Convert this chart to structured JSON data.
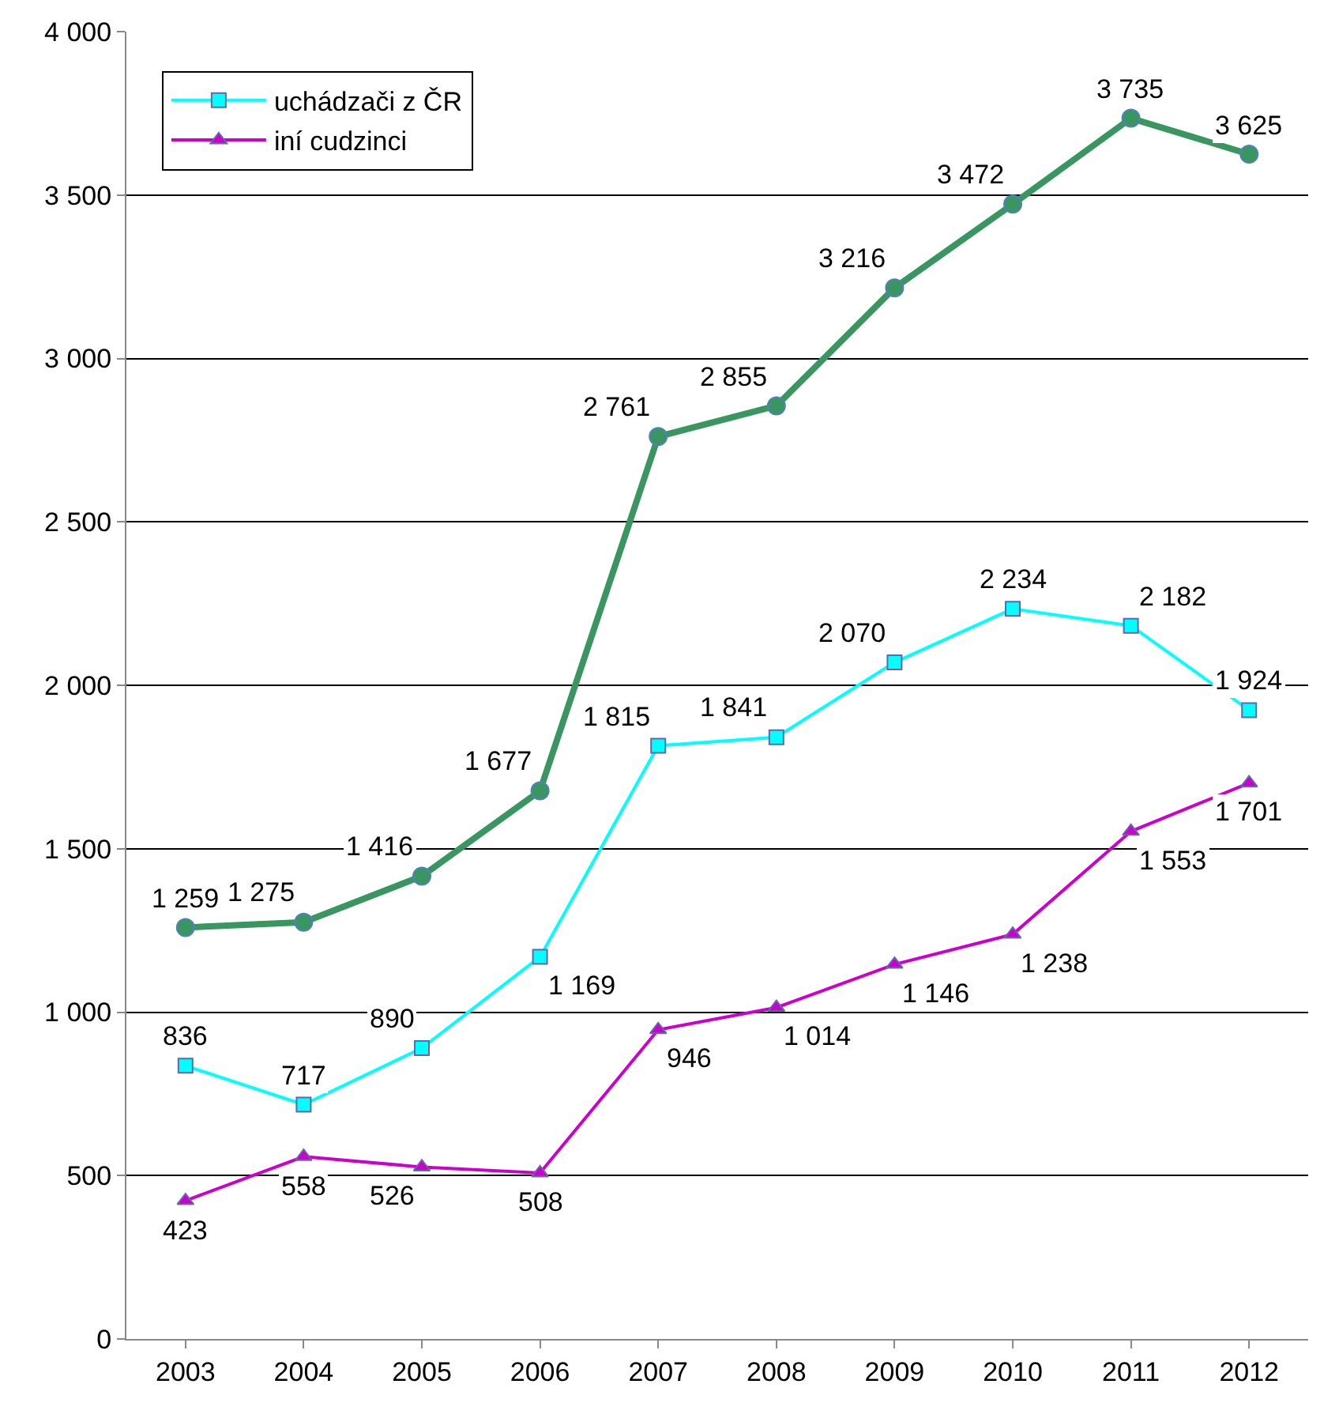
{
  "chart_data": {
    "type": "line",
    "categories": [
      "2003",
      "2004",
      "2005",
      "2006",
      "2007",
      "2008",
      "2009",
      "2010",
      "2011",
      "2012"
    ],
    "series": [
      {
        "color": "#3a9660",
        "marker": "circle",
        "values": [
          1259,
          1275,
          1416,
          1677,
          2761,
          2855,
          3216,
          3472,
          3735,
          3625
        ]
      },
      {
        "name": "uchádzači z ČR",
        "color": "#00ffff",
        "marker": "square",
        "values": [
          836,
          717,
          890,
          1169,
          1815,
          1841,
          2070,
          2234,
          2182,
          1924
        ]
      },
      {
        "name": "iní cudzinci",
        "color": "#cc00cc",
        "marker": "triangle",
        "values": [
          423,
          558,
          526,
          508,
          946,
          1014,
          1146,
          1238,
          1553,
          1701
        ]
      }
    ],
    "ylim": [
      0,
      4000
    ],
    "yticks": [
      0,
      500,
      {
        "value": 1000,
        "label": "1 000"
      },
      {
        "value": 1500,
        "label": "1 500"
      },
      {
        "value": 2000,
        "label": "2 000"
      },
      {
        "value": 2500,
        "label": "2 500"
      },
      {
        "value": 3000,
        "label": "3 000"
      },
      {
        "value": 3500,
        "label": "3 500"
      },
      {
        "value": 4000,
        "label": "4 000"
      }
    ],
    "grid": "y",
    "legend": "top left",
    "data_labels": true,
    "line_style": "solid"
  }
}
